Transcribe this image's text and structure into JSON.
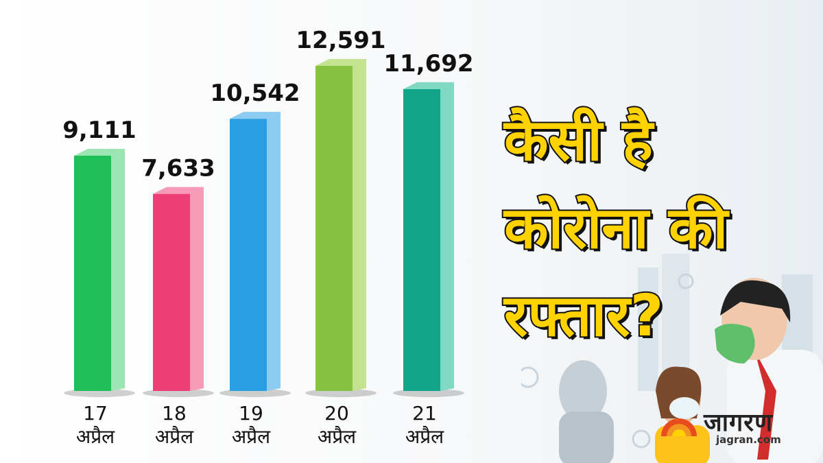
{
  "headline": {
    "line1": "कैसी है",
    "line2": "कोरोना की",
    "line3": "रफ्तार?"
  },
  "logo": {
    "name": "जागरण",
    "url": "jagran.com",
    "icon": "jagran-sun-logo-icon"
  },
  "chart_data": {
    "type": "bar",
    "title": "",
    "xlabel": "",
    "ylabel": "",
    "ylim": [
      0,
      13000
    ],
    "grid": false,
    "legend": "none",
    "categories": [
      {
        "day": "17",
        "month": "अप्रैल"
      },
      {
        "day": "18",
        "month": "अप्रैल"
      },
      {
        "day": "19",
        "month": "अप्रैल"
      },
      {
        "day": "20",
        "month": "अप्रैल"
      },
      {
        "day": "21",
        "month": "अप्रैल"
      }
    ],
    "values": [
      9111,
      7633,
      10542,
      12591,
      11692
    ],
    "value_labels": [
      "9,111",
      "7,633",
      "10,542",
      "12,591",
      "11,692"
    ],
    "colors": [
      "#1fbf5a",
      "#ee3e78",
      "#2a9ee4",
      "#87c241",
      "#12a58a"
    ],
    "side_colors": [
      "#9be5b2",
      "#f79ab8",
      "#8ccbf2",
      "#c3e390",
      "#7fd9c3"
    ]
  }
}
